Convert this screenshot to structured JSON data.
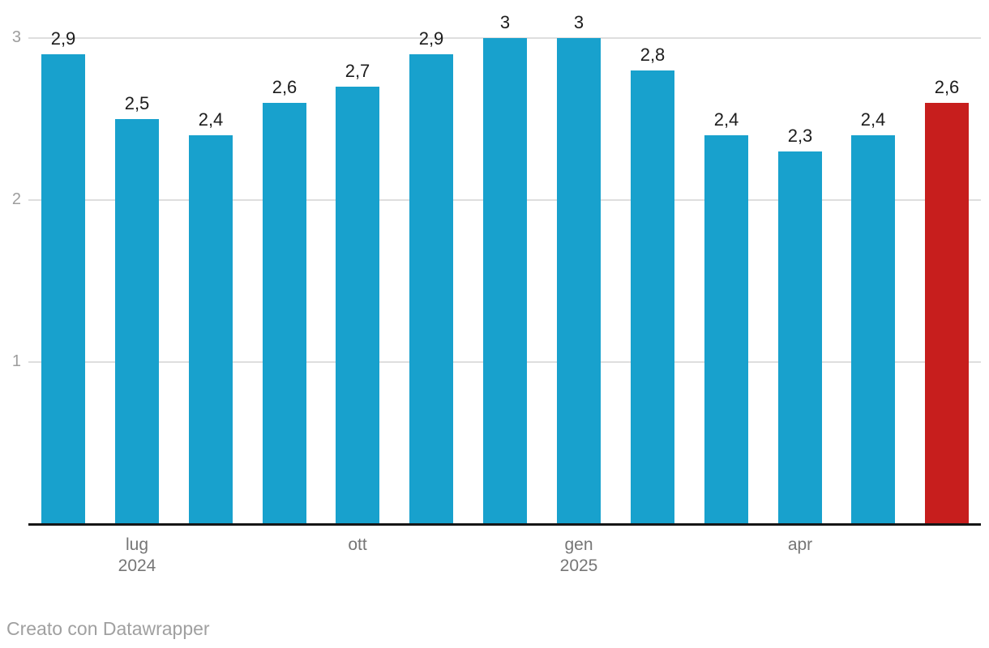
{
  "chart_data": {
    "type": "bar",
    "title": "",
    "categories": [
      "",
      "lug 2024",
      "",
      "",
      "ott",
      "",
      "",
      "gen 2025",
      "",
      "",
      "apr",
      "",
      ""
    ],
    "values": [
      2.9,
      2.5,
      2.4,
      2.6,
      2.7,
      2.9,
      3,
      3,
      2.8,
      2.4,
      2.3,
      2.4,
      2.6
    ],
    "value_labels": [
      "2,9",
      "2,5",
      "2,4",
      "2,6",
      "2,7",
      "2,9",
      "3",
      "3",
      "2,8",
      "2,4",
      "2,3",
      "2,4",
      "2,6"
    ],
    "highlight_index": 12,
    "y_ticks": [
      {
        "value": 1,
        "label": "1"
      },
      {
        "value": 2,
        "label": "2"
      },
      {
        "value": 3,
        "label": "3"
      }
    ],
    "ylim": [
      0,
      3.3
    ],
    "x_axis_ticks": [
      {
        "bar_index": 1,
        "line1": "lug",
        "line2": "2024"
      },
      {
        "bar_index": 4,
        "line1": "ott",
        "line2": ""
      },
      {
        "bar_index": 7,
        "line1": "gen",
        "line2": "2025"
      },
      {
        "bar_index": 10,
        "line1": "apr",
        "line2": ""
      }
    ],
    "grid": "horizontal",
    "legend": "none",
    "colors": {
      "bar_default": "#18a1cd",
      "bar_highlight": "#c71e1d",
      "value_label": "#1c1c1c",
      "y_tick_label": "#9d9d9d",
      "x_tick_label": "#767676",
      "gridline": "#dedede",
      "axis_line": "#161616"
    }
  },
  "footer": {
    "attribution": "Creato con Datawrapper"
  }
}
